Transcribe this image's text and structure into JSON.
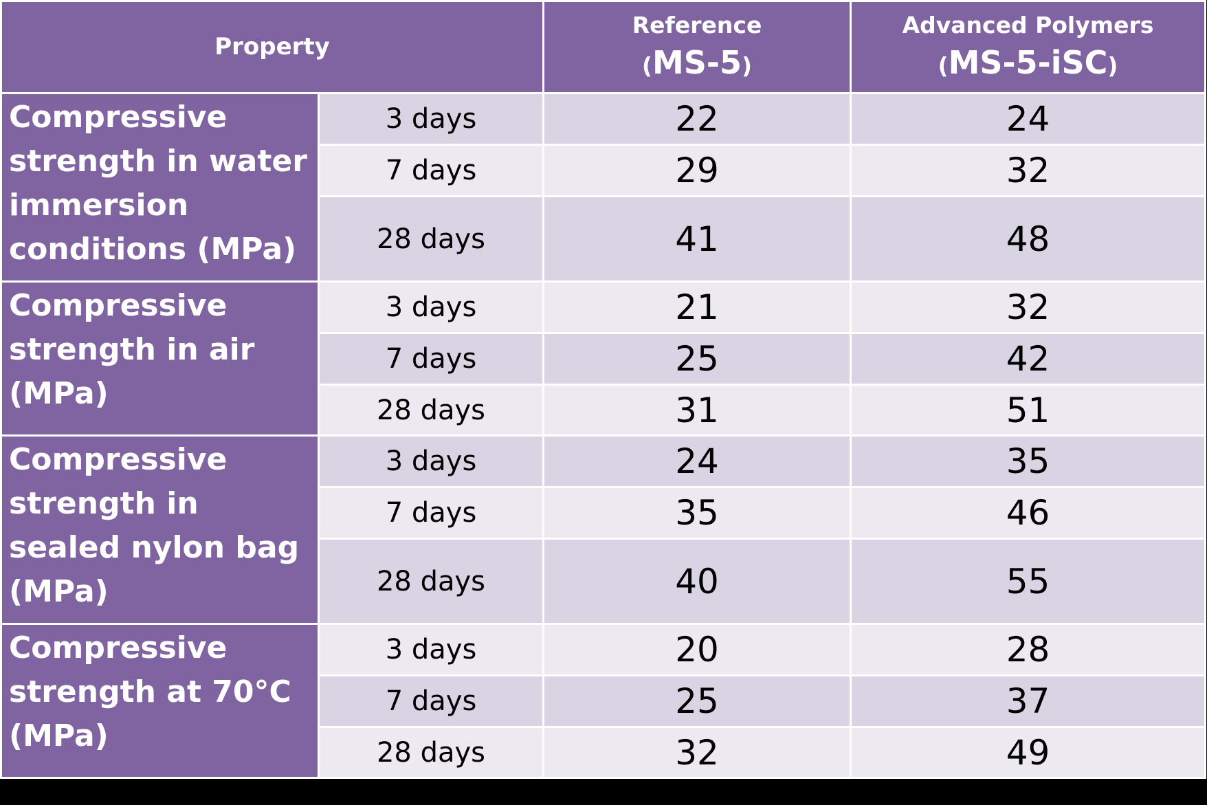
{
  "colors": {
    "header_bg": "#8064a2",
    "row_dark": "#d9d4e3",
    "row_light": "#ede9f1",
    "page_bg": "#000000"
  },
  "chart_data": {
    "type": "table",
    "headers": {
      "property": "Property",
      "reference_line1": "Reference",
      "reference_line2": "MS-5",
      "advanced_line1": "Advanced Polymers",
      "advanced_line2": "MS-5-iSC"
    },
    "groups": [
      {
        "label": "Compressive strength in water immersion conditions (MPa)",
        "rows": [
          {
            "age": "3 days",
            "reference": "22",
            "advanced": "24"
          },
          {
            "age": "7 days",
            "reference": "29",
            "advanced": "32"
          },
          {
            "age": "28 days",
            "reference": "41",
            "advanced": "48"
          }
        ]
      },
      {
        "label": "Compressive strength in air (MPa)",
        "rows": [
          {
            "age": "3 days",
            "reference": "21",
            "advanced": "32"
          },
          {
            "age": "7 days",
            "reference": "25",
            "advanced": "42"
          },
          {
            "age": "28 days",
            "reference": "31",
            "advanced": "51"
          }
        ]
      },
      {
        "label": "Compressive strength in sealed nylon bag (MPa)",
        "rows": [
          {
            "age": "3 days",
            "reference": "24",
            "advanced": "35"
          },
          {
            "age": "7 days",
            "reference": "35",
            "advanced": "46"
          },
          {
            "age": "28 days",
            "reference": "40",
            "advanced": "55"
          }
        ]
      },
      {
        "label": "Compressive strength at 70°C (MPa)",
        "rows": [
          {
            "age": "3 days",
            "reference": "20",
            "advanced": "28"
          },
          {
            "age": "7 days",
            "reference": "25",
            "advanced": "37"
          },
          {
            "age": "28 days",
            "reference": "32",
            "advanced": "49"
          }
        ]
      }
    ]
  }
}
